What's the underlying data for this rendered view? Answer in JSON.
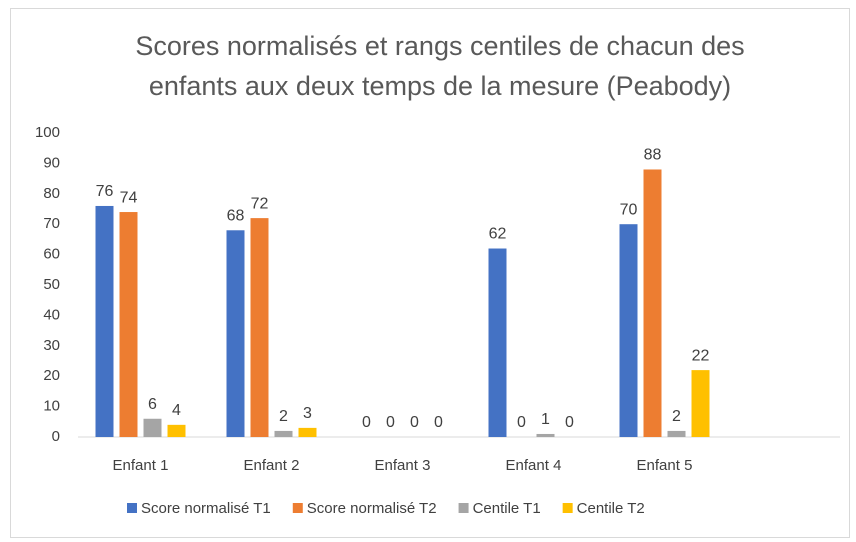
{
  "chart_data": {
    "type": "bar",
    "title": "Scores normalisés et rangs centiles de chacun des enfants aux deux temps de la mesure (Peabody)",
    "categories": [
      "Enfant 1",
      "Enfant 2",
      "Enfant 3",
      "Enfant 4",
      "Enfant 5"
    ],
    "series": [
      {
        "name": "Score normalisé T1",
        "color": "#4472c4",
        "values": [
          76,
          68,
          0,
          62,
          70
        ]
      },
      {
        "name": "Score normalisé T2",
        "color": "#ed7d31",
        "values": [
          74,
          72,
          0,
          0,
          88
        ]
      },
      {
        "name": "Centile T1",
        "color": "#a5a5a5",
        "values": [
          6,
          2,
          0,
          1,
          2
        ]
      },
      {
        "name": "Centile T2",
        "color": "#ffc000",
        "values": [
          4,
          3,
          0,
          0,
          22
        ]
      }
    ],
    "ylim": [
      0,
      100
    ],
    "yticks": [
      0,
      10,
      20,
      30,
      40,
      50,
      60,
      70,
      80,
      90,
      100
    ],
    "grid": false,
    "legend": "bottom"
  }
}
